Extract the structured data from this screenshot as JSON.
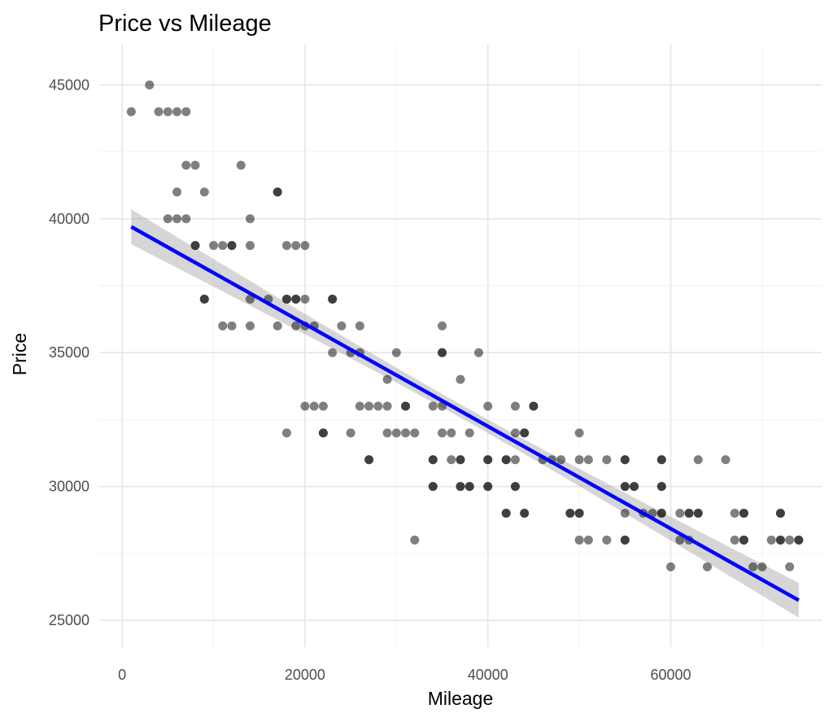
{
  "chart_data": {
    "type": "scatter",
    "title": "Price vs Mileage",
    "xlabel": "Mileage",
    "ylabel": "Price",
    "xlim": [
      -2500,
      76500
    ],
    "ylim": [
      24000,
      46500
    ],
    "xticks": [
      0,
      20000,
      40000,
      60000
    ],
    "xtick_labels": [
      "0",
      "20000",
      "40000",
      "60000"
    ],
    "yticks": [
      25000,
      30000,
      35000,
      40000,
      45000
    ],
    "ytick_labels": [
      "25000",
      "30000",
      "35000",
      "40000",
      "45000"
    ],
    "grid": true,
    "point_color": "#000000",
    "point_alpha": 0.5,
    "points": [
      [
        1000,
        44000
      ],
      [
        3000,
        45000
      ],
      [
        4000,
        44000
      ],
      [
        5000,
        44000
      ],
      [
        6000,
        44000
      ],
      [
        7000,
        44000
      ],
      [
        7000,
        42000
      ],
      [
        8000,
        42000
      ],
      [
        6000,
        41000
      ],
      [
        9000,
        41000
      ],
      [
        5000,
        40000
      ],
      [
        6000,
        40000
      ],
      [
        7000,
        40000
      ],
      [
        8000,
        39000
      ],
      [
        8000,
        39000
      ],
      [
        9000,
        37000
      ],
      [
        9000,
        37000
      ],
      [
        10000,
        39000
      ],
      [
        11000,
        39000
      ],
      [
        12000,
        39000
      ],
      [
        12000,
        39000
      ],
      [
        11000,
        36000
      ],
      [
        12000,
        36000
      ],
      [
        13000,
        42000
      ],
      [
        14000,
        40000
      ],
      [
        14000,
        39000
      ],
      [
        14000,
        37000
      ],
      [
        14000,
        36000
      ],
      [
        16000,
        37000
      ],
      [
        17000,
        41000
      ],
      [
        17000,
        41000
      ],
      [
        17000,
        36000
      ],
      [
        18000,
        39000
      ],
      [
        18000,
        37000
      ],
      [
        18000,
        37000
      ],
      [
        19000,
        39000
      ],
      [
        19000,
        37000
      ],
      [
        19000,
        37000
      ],
      [
        19000,
        36000
      ],
      [
        20000,
        39000
      ],
      [
        20000,
        37000
      ],
      [
        20000,
        36000
      ],
      [
        21000,
        36000
      ],
      [
        18000,
        32000
      ],
      [
        20000,
        33000
      ],
      [
        21000,
        33000
      ],
      [
        22000,
        33000
      ],
      [
        22000,
        32000
      ],
      [
        22000,
        32000
      ],
      [
        23000,
        37000
      ],
      [
        23000,
        37000
      ],
      [
        23000,
        35000
      ],
      [
        24000,
        36000
      ],
      [
        25000,
        35000
      ],
      [
        25000,
        32000
      ],
      [
        26000,
        36000
      ],
      [
        26000,
        35000
      ],
      [
        26000,
        33000
      ],
      [
        27000,
        33000
      ],
      [
        27000,
        31000
      ],
      [
        27000,
        31000
      ],
      [
        28000,
        33000
      ],
      [
        29000,
        33000
      ],
      [
        29000,
        34000
      ],
      [
        29000,
        32000
      ],
      [
        30000,
        35000
      ],
      [
        30000,
        32000
      ],
      [
        31000,
        33000
      ],
      [
        31000,
        33000
      ],
      [
        31000,
        32000
      ],
      [
        32000,
        32000
      ],
      [
        32000,
        28000
      ],
      [
        34000,
        33000
      ],
      [
        34000,
        31000
      ],
      [
        34000,
        31000
      ],
      [
        34000,
        30000
      ],
      [
        34000,
        30000
      ],
      [
        35000,
        36000
      ],
      [
        35000,
        35000
      ],
      [
        35000,
        35000
      ],
      [
        35000,
        33000
      ],
      [
        35000,
        32000
      ],
      [
        36000,
        32000
      ],
      [
        36000,
        31000
      ],
      [
        37000,
        34000
      ],
      [
        37000,
        31000
      ],
      [
        37000,
        31000
      ],
      [
        37000,
        30000
      ],
      [
        37000,
        30000
      ],
      [
        38000,
        32000
      ],
      [
        38000,
        30000
      ],
      [
        38000,
        30000
      ],
      [
        39000,
        35000
      ],
      [
        40000,
        33000
      ],
      [
        40000,
        31000
      ],
      [
        40000,
        31000
      ],
      [
        40000,
        30000
      ],
      [
        40000,
        30000
      ],
      [
        42000,
        31000
      ],
      [
        42000,
        31000
      ],
      [
        42000,
        29000
      ],
      [
        42000,
        29000
      ],
      [
        43000,
        33000
      ],
      [
        43000,
        32000
      ],
      [
        43000,
        31000
      ],
      [
        43000,
        30000
      ],
      [
        43000,
        30000
      ],
      [
        44000,
        32000
      ],
      [
        44000,
        32000
      ],
      [
        44000,
        29000
      ],
      [
        44000,
        29000
      ],
      [
        45000,
        33000
      ],
      [
        45000,
        33000
      ],
      [
        46000,
        31000
      ],
      [
        47000,
        31000
      ],
      [
        48000,
        31000
      ],
      [
        49000,
        29000
      ],
      [
        49000,
        29000
      ],
      [
        50000,
        29000
      ],
      [
        50000,
        29000
      ],
      [
        50000,
        32000
      ],
      [
        50000,
        31000
      ],
      [
        50000,
        28000
      ],
      [
        51000,
        31000
      ],
      [
        51000,
        28000
      ],
      [
        53000,
        31000
      ],
      [
        53000,
        28000
      ],
      [
        55000,
        31000
      ],
      [
        55000,
        31000
      ],
      [
        55000,
        30000
      ],
      [
        55000,
        30000
      ],
      [
        55000,
        29000
      ],
      [
        55000,
        28000
      ],
      [
        55000,
        28000
      ],
      [
        56000,
        30000
      ],
      [
        56000,
        30000
      ],
      [
        57000,
        29000
      ],
      [
        58000,
        29000
      ],
      [
        59000,
        31000
      ],
      [
        59000,
        31000
      ],
      [
        59000,
        30000
      ],
      [
        59000,
        30000
      ],
      [
        59000,
        29000
      ],
      [
        59000,
        29000
      ],
      [
        60000,
        27000
      ],
      [
        61000,
        29000
      ],
      [
        61000,
        28000
      ],
      [
        62000,
        29000
      ],
      [
        62000,
        29000
      ],
      [
        62000,
        28000
      ],
      [
        63000,
        31000
      ],
      [
        63000,
        29000
      ],
      [
        63000,
        29000
      ],
      [
        64000,
        27000
      ],
      [
        66000,
        31000
      ],
      [
        67000,
        29000
      ],
      [
        67000,
        28000
      ],
      [
        68000,
        29000
      ],
      [
        68000,
        29000
      ],
      [
        68000,
        28000
      ],
      [
        68000,
        28000
      ],
      [
        69000,
        27000
      ],
      [
        70000,
        27000
      ],
      [
        71000,
        28000
      ],
      [
        72000,
        29000
      ],
      [
        72000,
        29000
      ],
      [
        72000,
        28000
      ],
      [
        72000,
        28000
      ],
      [
        73000,
        28000
      ],
      [
        73000,
        27000
      ],
      [
        74000,
        28000
      ],
      [
        74000,
        28000
      ]
    ],
    "fit_line": {
      "method": "lm",
      "color": "#0000ff",
      "x": [
        1000,
        74000
      ],
      "y": [
        39700,
        25750
      ],
      "ci_halfwidth_ends": 650,
      "ci_halfwidth_center": 250,
      "ci_color": "#999999"
    }
  }
}
